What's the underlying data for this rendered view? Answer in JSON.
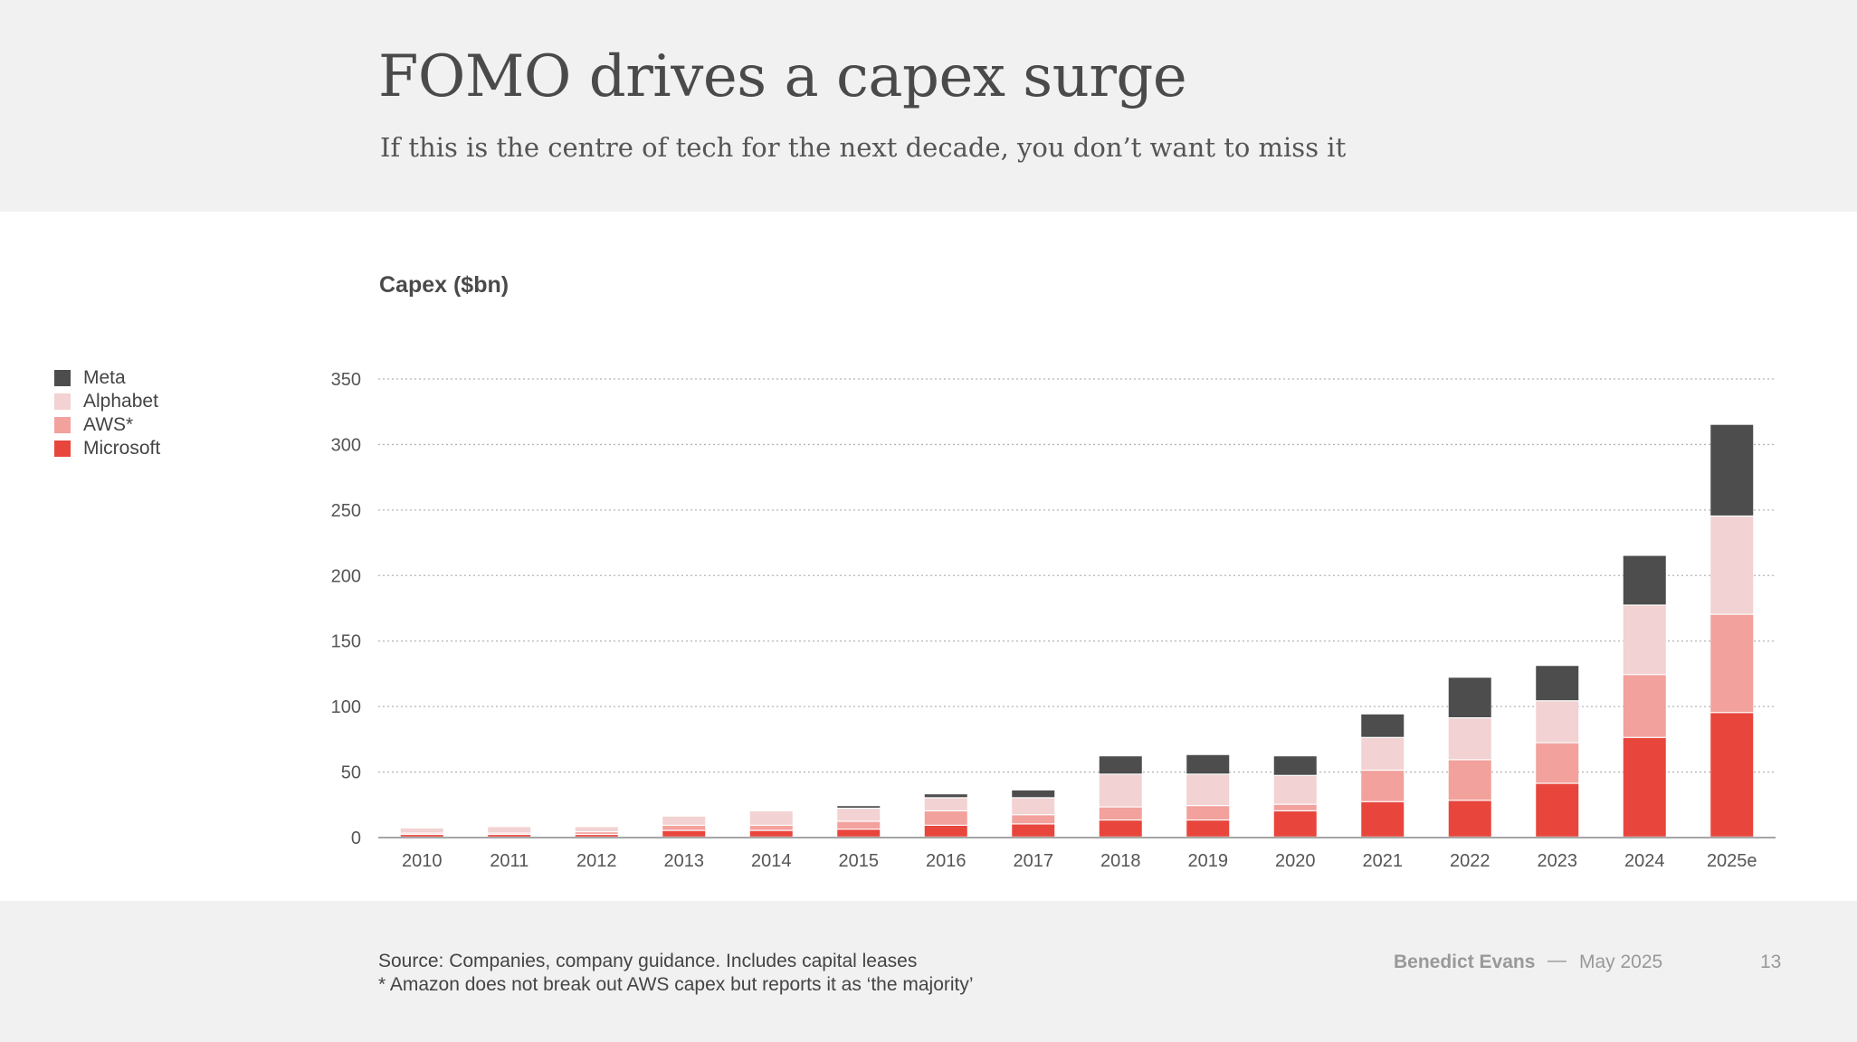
{
  "header": {
    "title": "FOMO drives a capex surge",
    "subtitle": "If this is the centre of tech for the next decade, you don’t want to miss it"
  },
  "legend": [
    {
      "label": "Meta",
      "color": "#4d4d4d"
    },
    {
      "label": "Alphabet",
      "color": "#f2d2d2"
    },
    {
      "label": "AWS*",
      "color": "#f2a19c"
    },
    {
      "label": "Microsoft",
      "color": "#e8453c"
    }
  ],
  "footer": {
    "source_line1": "Source: Companies, company guidance. Includes capital leases",
    "source_line2": "* Amazon does not break out AWS capex but reports it as ‘the majority’",
    "author": "Benedict Evans",
    "separator": "—",
    "date": "May 2025",
    "page": "13"
  },
  "chart_data": {
    "type": "bar",
    "stacked": true,
    "title": "Capex ($bn)",
    "xlabel": "",
    "ylabel": "Capex ($bn)",
    "ylim": [
      0,
      350
    ],
    "yticks": [
      0,
      50,
      100,
      150,
      200,
      250,
      300,
      350
    ],
    "grid": true,
    "legend_position": "left",
    "categories": [
      "2010",
      "2011",
      "2012",
      "2013",
      "2014",
      "2015",
      "2016",
      "2017",
      "2018",
      "2019",
      "2020",
      "2021",
      "2022",
      "2023",
      "2024",
      "2025e"
    ],
    "series": [
      {
        "name": "Microsoft",
        "color": "#e8453c",
        "values": [
          2,
          2,
          2,
          5,
          5,
          6,
          9,
          10,
          13,
          13,
          20,
          27,
          28,
          41,
          76,
          95
        ]
      },
      {
        "name": "AWS*",
        "color": "#f2a19c",
        "values": [
          1,
          1,
          2,
          4,
          4,
          6,
          11,
          7,
          10,
          11,
          5,
          24,
          31,
          31,
          48,
          75
        ]
      },
      {
        "name": "Alphabet",
        "color": "#f2d2d2",
        "values": [
          4,
          5,
          4,
          7,
          11,
          10,
          10,
          13,
          25,
          24,
          22,
          25,
          32,
          32,
          53,
          75
        ]
      },
      {
        "name": "Meta",
        "color": "#4d4d4d",
        "values": [
          0,
          0,
          0,
          0,
          0,
          2,
          3,
          6,
          14,
          15,
          15,
          18,
          31,
          27,
          38,
          70
        ]
      }
    ]
  }
}
